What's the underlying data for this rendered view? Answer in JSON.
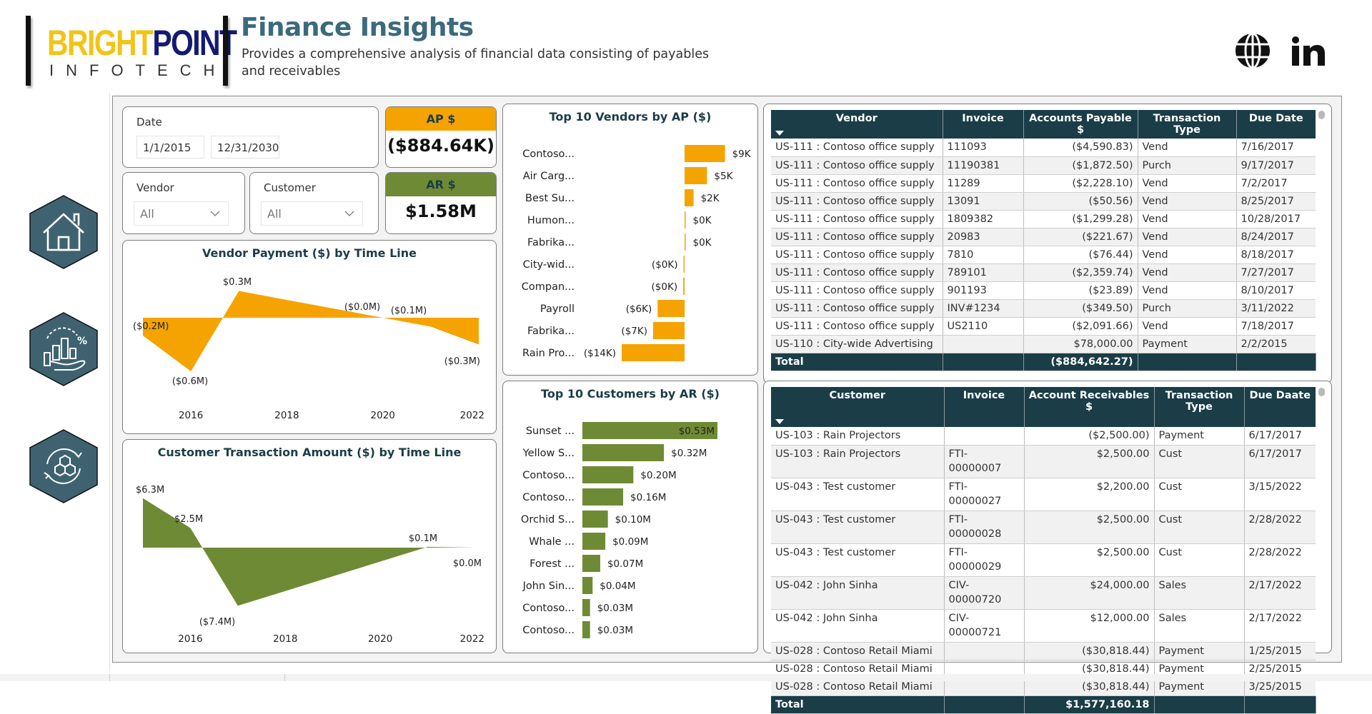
{
  "header": {
    "logo_brand_part1": "BRIGHT",
    "logo_brand_part2": "POINT",
    "logo_sub": "INFOTECH",
    "title": "Finance Insights",
    "subtitle": "Provides a comprehensive analysis of financial data consisting of payables and receivables",
    "icons": [
      "globe-icon",
      "linkedin-icon"
    ]
  },
  "nav": {
    "items": [
      {
        "name": "home",
        "icon": "house-icon"
      },
      {
        "name": "finance-analysis",
        "icon": "hand-chart-percent-icon"
      },
      {
        "name": "network",
        "icon": "hexagon-cycle-icon"
      }
    ]
  },
  "filters": {
    "date_label": "Date",
    "date_start": "1/1/2015",
    "date_end": "12/31/2030",
    "vendor_label": "Vendor",
    "vendor_value": "All",
    "customer_label": "Customer",
    "customer_value": "All"
  },
  "kpis": {
    "ap_label": "AP $",
    "ap_value": "($884.64K)",
    "ap_color": "#f5a300",
    "ar_label": "AR $",
    "ar_value": "$1.58M",
    "ar_color": "#6f8a35"
  },
  "chart_data": [
    {
      "id": "vendor-payment",
      "type": "area",
      "title": "Vendor Payment ($) by Time Line",
      "color": "#f5a300",
      "x": [
        2015,
        2016,
        2017,
        2020,
        2021,
        2022
      ],
      "values": [
        -0.2,
        -0.6,
        0.3,
        0.0,
        -0.1,
        -0.3
      ],
      "labels": [
        "($0.2M)",
        "($0.6M)",
        "$0.3M",
        "($0.0M)",
        "($0.1M)",
        "($0.3M)"
      ],
      "x_ticks": [
        "2016",
        "2018",
        "2020",
        "2022"
      ],
      "x_tick_values": [
        2016,
        2018,
        2020,
        2022
      ],
      "xlim": [
        2015,
        2022
      ],
      "ylim": [
        -0.75,
        0.45
      ],
      "unit": "$M",
      "grid": false
    },
    {
      "id": "customer-transaction",
      "type": "area",
      "title": "Customer Transaction Amount ($) by Time Line",
      "color": "#6f8a35",
      "x": [
        2015,
        2016,
        2017,
        2021,
        2022
      ],
      "values": [
        6.3,
        2.5,
        -7.4,
        0.1,
        0.0
      ],
      "labels": [
        "$6.3M",
        "$2.5M",
        "($7.4M)",
        "$0.1M",
        "$0.0M"
      ],
      "x_ticks": [
        "2016",
        "2018",
        "2020",
        "2022"
      ],
      "x_tick_values": [
        2016,
        2018,
        2020,
        2022
      ],
      "xlim": [
        2015,
        2022
      ],
      "ylim": [
        -8.5,
        8.5
      ],
      "unit": "$M",
      "grid": false
    },
    {
      "id": "top-vendors",
      "type": "bar",
      "orientation": "horizontal",
      "title": "Top 10 Vendors by AP ($)",
      "color": "#f5a300",
      "categories": [
        "Contoso...",
        "Air Carg...",
        "Best Su...",
        "Humon...",
        "Fabrika...",
        "City-wid...",
        "Compan...",
        "Payroll",
        "Fabrika...",
        "Rain Pro..."
      ],
      "values": [
        9,
        5,
        2,
        0.2,
        0.2,
        -0.2,
        -0.3,
        -6,
        -7,
        -14
      ],
      "labels": [
        "$9K",
        "$5K",
        "$2K",
        "$0K",
        "$0K",
        "($0K)",
        "($0K)",
        "($6K)",
        "($7K)",
        "($14K)"
      ],
      "unit": "$K"
    },
    {
      "id": "top-customers",
      "type": "bar",
      "orientation": "horizontal",
      "title": "Top 10 Customers by AR ($)",
      "color": "#6f8a35",
      "categories": [
        "Sunset ...",
        "Yellow S...",
        "Contoso...",
        "Contoso...",
        "Orchid S...",
        "Whale ...",
        "Forest ...",
        "John Sin...",
        "Contoso...",
        "Contoso..."
      ],
      "values": [
        0.53,
        0.32,
        0.2,
        0.16,
        0.1,
        0.09,
        0.07,
        0.04,
        0.03,
        0.03
      ],
      "labels": [
        "$0.53M",
        "$0.32M",
        "$0.20M",
        "$0.16M",
        "$0.10M",
        "$0.09M",
        "$0.07M",
        "$0.04M",
        "$0.03M",
        "$0.03M"
      ],
      "unit": "$M"
    }
  ],
  "ap_table": {
    "columns": [
      "Vendor",
      "Invoice",
      "Accounts Payable $",
      "Transaction Type",
      "Due Date"
    ],
    "rows": [
      [
        "US-111 : Contoso office supply",
        "111093",
        "($4,590.83)",
        "Vend",
        "7/16/2017"
      ],
      [
        "US-111 : Contoso office supply",
        "11190381",
        "($1,872.50)",
        "Purch",
        "9/17/2017"
      ],
      [
        "US-111 : Contoso office supply",
        "11289",
        "($2,228.10)",
        "Vend",
        "7/2/2017"
      ],
      [
        "US-111 : Contoso office supply",
        "13091",
        "($50.56)",
        "Vend",
        "8/25/2017"
      ],
      [
        "US-111 : Contoso office supply",
        "1809382",
        "($1,299.28)",
        "Vend",
        "10/28/2017"
      ],
      [
        "US-111 : Contoso office supply",
        "20983",
        "($221.67)",
        "Vend",
        "8/24/2017"
      ],
      [
        "US-111 : Contoso office supply",
        "7810",
        "($76.44)",
        "Vend",
        "8/18/2017"
      ],
      [
        "US-111 : Contoso office supply",
        "789101",
        "($2,359.74)",
        "Vend",
        "7/27/2017"
      ],
      [
        "US-111 : Contoso office supply",
        "901193",
        "($23.89)",
        "Vend",
        "8/10/2017"
      ],
      [
        "US-111 : Contoso office supply",
        "INV#1234",
        "($349.50)",
        "Purch",
        "3/11/2022"
      ],
      [
        "US-111 : Contoso office supply",
        "US2110",
        "($2,091.66)",
        "Vend",
        "7/18/2017"
      ],
      [
        "US-110 : City-wide Advertising",
        "",
        "$78,000.00",
        "Payment",
        "2/2/2015"
      ]
    ],
    "total_label": "Total",
    "total_value": "($884,642.27)"
  },
  "ar_table": {
    "columns": [
      "Customer",
      "Invoice",
      "Account Receivables $",
      "Transaction Type",
      "Due Daate"
    ],
    "rows": [
      [
        "US-103 : Rain Projectors",
        "",
        "($2,500.00)",
        "Payment",
        "6/17/2017"
      ],
      [
        "US-103 : Rain Projectors",
        "FTI-00000007",
        "$2,500.00",
        "Cust",
        "6/17/2017"
      ],
      [
        "US-043 : Test customer",
        "FTI-00000027",
        "$2,200.00",
        "Cust",
        "3/15/2022"
      ],
      [
        "US-043 : Test customer",
        "FTI-00000028",
        "$2,500.00",
        "Cust",
        "2/28/2022"
      ],
      [
        "US-043 : Test customer",
        "FTI-00000029",
        "$2,500.00",
        "Cust",
        "2/28/2022"
      ],
      [
        "US-042 : John Sinha",
        "CIV-00000720",
        "$24,000.00",
        "Sales",
        "2/17/2022"
      ],
      [
        "US-042 : John Sinha",
        "CIV-00000721",
        "$12,000.00",
        "Sales",
        "2/17/2022"
      ],
      [
        "US-028 : Contoso Retail Miami",
        "",
        "($30,818.44)",
        "Payment",
        "1/25/2015"
      ],
      [
        "US-028 : Contoso Retail Miami",
        "",
        "($30,818.44)",
        "Payment",
        "2/25/2015"
      ],
      [
        "US-028 : Contoso Retail Miami",
        "",
        "($30,818.44)",
        "Payment",
        "3/25/2015"
      ]
    ],
    "total_label": "Total",
    "total_value": "$1,577,160.18"
  }
}
